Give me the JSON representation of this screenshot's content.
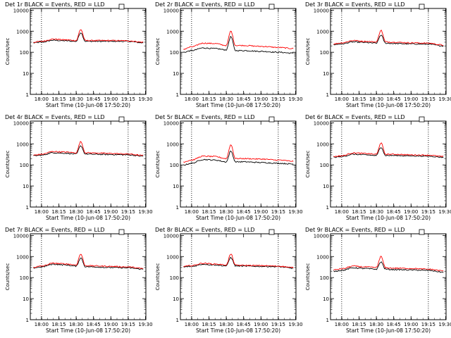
{
  "chart_data": {
    "type": "line",
    "x_axis": {
      "label": "Start Time (10-Jun-08 17:50:20)",
      "ticks": [
        "18:00",
        "18:15",
        "18:30",
        "18:45",
        "19:00",
        "19:15",
        "19:30"
      ],
      "range_minutes_after_17_50_20": [
        0,
        100
      ]
    },
    "y_axis": {
      "label": "Counts/sec",
      "scale": "log",
      "ticks": [
        "1",
        "10",
        "100",
        "1000",
        "10000"
      ],
      "range": [
        1,
        12000
      ]
    },
    "series_colors": {
      "Events": "#000000",
      "LLD": "#ff0000"
    },
    "panels": [
      {
        "title": "Det 1r BLACK = Events, RED = LLD",
        "vlines": [
          "18:00",
          "19:15"
        ],
        "x": [
          "17:53",
          "18:00",
          "18:10",
          "18:20",
          "18:30",
          "18:34",
          "18:38",
          "18:45",
          "19:00",
          "19:15",
          "19:28"
        ],
        "series": [
          {
            "name": "Events",
            "values": [
              280,
              300,
              370,
              350,
              330,
              850,
              330,
              330,
              330,
              330,
              280
            ]
          },
          {
            "name": "LLD",
            "values": [
              300,
              330,
              420,
              390,
              360,
              1200,
              360,
              360,
              360,
              350,
              300
            ]
          }
        ]
      },
      {
        "title": "Det 2r BLACK = Events, RED = LLD",
        "vlines": [
          "18:00",
          "19:15"
        ],
        "x": [
          "17:53",
          "18:00",
          "18:10",
          "18:20",
          "18:30",
          "18:34",
          "18:38",
          "18:45",
          "19:00",
          "19:15",
          "19:28"
        ],
        "series": [
          {
            "name": "Events",
            "values": [
              100,
              120,
              160,
              150,
              130,
              550,
              120,
              120,
              110,
              100,
              90
            ]
          },
          {
            "name": "LLD",
            "values": [
              140,
              180,
              270,
              260,
              210,
              1000,
              210,
              210,
              190,
              170,
              150
            ]
          }
        ]
      },
      {
        "title": "Det 3r BLACK = Events, RED = LLD",
        "vlines": [
          "18:00",
          "19:15"
        ],
        "x": [
          "17:53",
          "18:00",
          "18:10",
          "18:20",
          "18:30",
          "18:34",
          "18:38",
          "18:45",
          "19:00",
          "19:15",
          "19:28"
        ],
        "series": [
          {
            "name": "Events",
            "values": [
              230,
              250,
              310,
              290,
              270,
              650,
              270,
              260,
              250,
              240,
              200
            ]
          },
          {
            "name": "LLD",
            "values": [
              250,
              280,
              360,
              330,
              310,
              1100,
              310,
              300,
              280,
              270,
              220
            ]
          }
        ]
      },
      {
        "title": "Det 4r BLACK = Events, RED = LLD",
        "vlines": [
          "18:00",
          "19:15"
        ],
        "x": [
          "17:53",
          "18:00",
          "18:10",
          "18:20",
          "18:30",
          "18:34",
          "18:38",
          "18:45",
          "19:00",
          "19:15",
          "19:28"
        ],
        "series": [
          {
            "name": "Events",
            "values": [
              270,
              290,
              380,
              360,
              330,
              800,
              330,
              320,
              310,
              300,
              260
            ]
          },
          {
            "name": "LLD",
            "values": [
              290,
              320,
              430,
              410,
              380,
              1250,
              380,
              370,
              350,
              330,
              280
            ]
          }
        ]
      },
      {
        "title": "Det 5r BLACK = Events, RED = LLD",
        "vlines": [
          "18:00",
          "19:15"
        ],
        "x": [
          "17:53",
          "18:00",
          "18:10",
          "18:20",
          "18:30",
          "18:34",
          "18:38",
          "18:45",
          "19:00",
          "19:15",
          "19:28"
        ],
        "series": [
          {
            "name": "Events",
            "values": [
              100,
              120,
              180,
              170,
              140,
              450,
              140,
              140,
              130,
              120,
              110
            ]
          },
          {
            "name": "LLD",
            "values": [
              140,
              170,
              260,
              250,
              200,
              900,
              200,
              200,
              190,
              170,
              150
            ]
          }
        ]
      },
      {
        "title": "Det 6r BLACK = Events, RED = LLD",
        "vlines": [
          "18:00",
          "19:15"
        ],
        "x": [
          "17:53",
          "18:00",
          "18:10",
          "18:20",
          "18:30",
          "18:34",
          "18:38",
          "18:45",
          "19:00",
          "19:15",
          "19:28"
        ],
        "series": [
          {
            "name": "Events",
            "values": [
              230,
              250,
              320,
              300,
              280,
              700,
              280,
              280,
              270,
              260,
              230
            ]
          },
          {
            "name": "LLD",
            "values": [
              250,
              270,
              370,
              350,
              320,
              1100,
              320,
              320,
              300,
              290,
              250
            ]
          }
        ]
      },
      {
        "title": "Det 7r BLACK = Events, RED = LLD",
        "vlines": [
          "18:00",
          "19:15"
        ],
        "x": [
          "17:53",
          "18:00",
          "18:10",
          "18:20",
          "18:30",
          "18:34",
          "18:38",
          "18:45",
          "19:00",
          "19:15",
          "19:28"
        ],
        "series": [
          {
            "name": "Events",
            "values": [
              290,
              320,
              430,
              400,
              350,
              850,
              330,
              320,
              300,
              290,
              250
            ]
          },
          {
            "name": "LLD",
            "values": [
              310,
              350,
              480,
              450,
              400,
              1300,
              370,
              360,
              340,
              320,
              270
            ]
          }
        ]
      },
      {
        "title": "Det 8r BLACK = Events, RED = LLD",
        "vlines": [
          "18:00",
          "19:15"
        ],
        "x": [
          "17:53",
          "18:00",
          "18:10",
          "18:20",
          "18:30",
          "18:34",
          "18:38",
          "18:45",
          "19:00",
          "19:15",
          "19:28"
        ],
        "series": [
          {
            "name": "Events",
            "values": [
              320,
              340,
              430,
              400,
              360,
              900,
              360,
              350,
              340,
              330,
              280
            ]
          },
          {
            "name": "LLD",
            "values": [
              340,
              370,
              480,
              440,
              400,
              1300,
              390,
              380,
              370,
              350,
              300
            ]
          }
        ]
      },
      {
        "title": "Det 9r BLACK = Events, RED = LLD",
        "vlines": [
          "18:00",
          "19:15"
        ],
        "x": [
          "17:53",
          "18:00",
          "18:10",
          "18:20",
          "18:30",
          "18:34",
          "18:38",
          "18:45",
          "19:00",
          "19:15",
          "19:28"
        ],
        "series": [
          {
            "name": "Events",
            "values": [
              200,
              220,
              290,
              270,
              250,
              550,
              250,
              240,
              230,
              220,
              180
            ]
          },
          {
            "name": "LLD",
            "values": [
              230,
              260,
              350,
              320,
              300,
              1000,
              290,
              280,
              270,
              250,
              210
            ]
          }
        ]
      }
    ]
  }
}
